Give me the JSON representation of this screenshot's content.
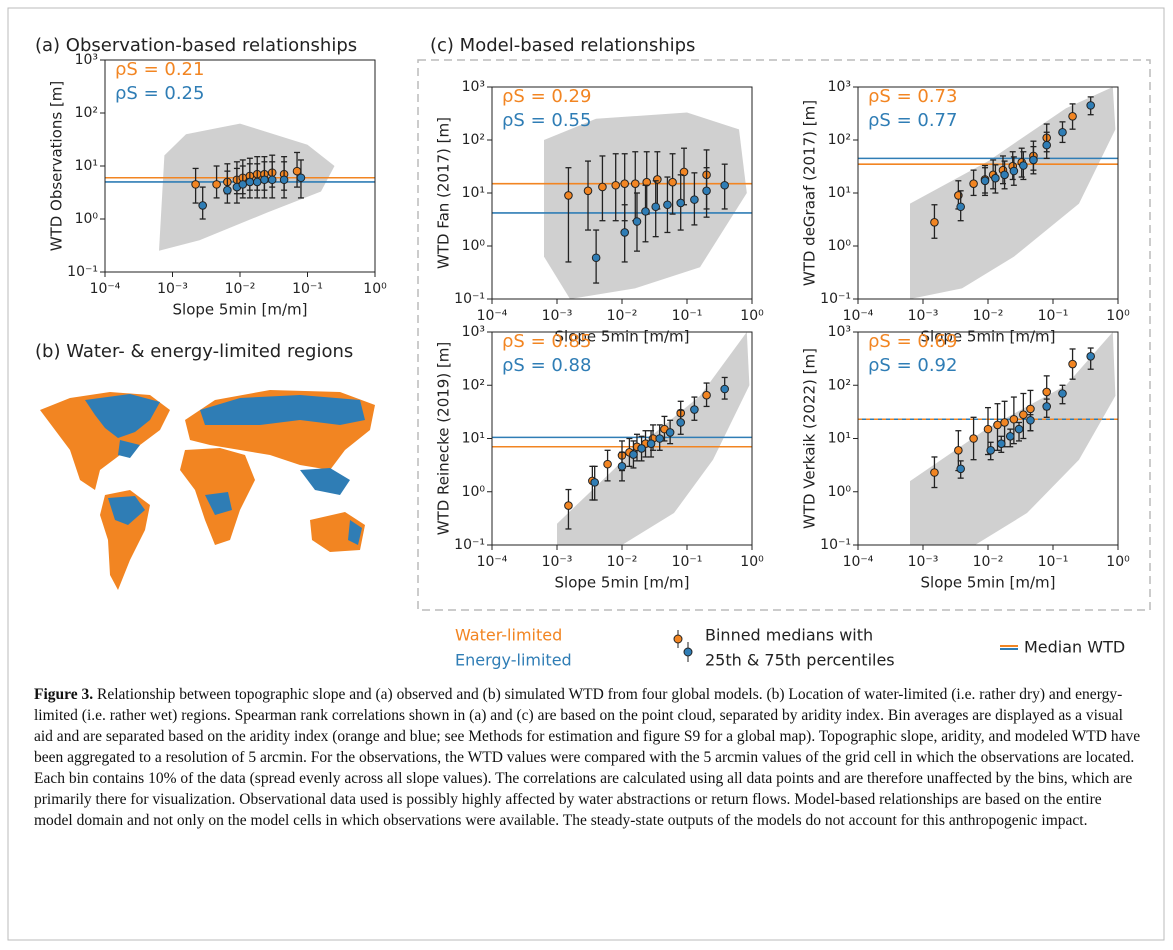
{
  "panel_c_title": "(c) Model-based relationships",
  "map": {
    "title": "(b) Water- & energy-limited regions"
  },
  "legend": {
    "water": "Water-limited",
    "energy": "Energy-limited",
    "markers_line1": "Binned medians with",
    "markers_line2": "25th & 75th percentiles",
    "line": "Median WTD"
  },
  "caption": {
    "label": "Figure 3.",
    "text": "Relationship between topographic slope and (a) observed and (b) simulated WTD from four global models. (b) Location of water-limited (i.e. rather dry) and energy-limited (i.e. rather wet) regions. Spearman rank correlations shown in (a) and (c) are based on the point cloud, separated by aridity index. Bin averages are displayed as a visual aid and are separated based on the aridity index (orange and blue; see Methods for estimation and figure S9 for a global map). Topographic slope, aridity, and modeled WTD have been aggregated to a resolution of 5 arcmin. For the observations, the WTD values were compared with the 5 arcmin values of the grid cell in which the observations are located. Each bin contains 10% of the data (spread evenly across all slope values). The correlations are calculated using all data points and are therefore unaffected by the bins, which are primarily there for visualization. Observational data used is possibly highly affected by water abstractions or return flows. Model-based relationships are based on the entire model domain and not only on the model cells in which observations were available. The steady-state outputs of the models do not account for this anthropogenic impact."
  },
  "chart_data": [
    {
      "type": "errorbar",
      "title": "(a) Observation-based relationships",
      "xlabel": "Slope 5min [m/m]",
      "ylabel": "WTD Observations [m]",
      "xscale": "log",
      "yscale": "log",
      "median_linestyle": "solid",
      "xlim": [
        0.0001,
        1
      ],
      "ylim": [
        0.1,
        1000
      ],
      "xticks": [
        {
          "value": 0.0001,
          "label": "10⁻⁴"
        },
        {
          "value": 0.001,
          "label": "10⁻³"
        },
        {
          "value": 0.01,
          "label": "10⁻²"
        },
        {
          "value": 0.1,
          "label": "10⁻¹"
        },
        {
          "value": 1,
          "label": "10⁰"
        }
      ],
      "yticks": [
        {
          "value": 0.1,
          "label": "10⁻¹"
        },
        {
          "value": 1,
          "label": "10⁰"
        },
        {
          "value": 10,
          "label": "10¹"
        },
        {
          "value": 100,
          "label": "10²"
        },
        {
          "value": 1000,
          "label": "10³"
        }
      ],
      "series": [
        {
          "name": "Water-limited",
          "color": "#f28522",
          "annotation": "ρS = 0.21",
          "median": 6,
          "x": [
            0.0022,
            0.0045,
            0.0065,
            0.009,
            0.011,
            0.014,
            0.018,
            0.023,
            0.03,
            0.045,
            0.07
          ],
          "values": [
            4.5,
            4.5,
            5,
            5.5,
            6,
            6.5,
            7,
            7,
            7.5,
            7,
            8
          ],
          "low": [
            2,
            2.5,
            3,
            3,
            3,
            3.5,
            3.5,
            3.5,
            4,
            3.5,
            4
          ],
          "high": [
            9,
            10,
            11,
            12,
            13,
            14,
            15,
            15,
            16,
            15,
            18
          ]
        },
        {
          "name": "Energy-limited",
          "color": "#2f7db5",
          "annotation": "ρS = 0.25",
          "median": 5,
          "x": [
            0.0028,
            0.0065,
            0.009,
            0.011,
            0.014,
            0.018,
            0.023,
            0.03,
            0.045,
            0.08
          ],
          "values": [
            1.8,
            3.5,
            4,
            4.5,
            5,
            5,
            5.5,
            5.5,
            5.5,
            6
          ],
          "low": [
            1,
            2,
            2,
            2.5,
            2.5,
            2.5,
            2.5,
            2.5,
            2.5,
            2.5
          ],
          "high": [
            4,
            8,
            9,
            10,
            11,
            11,
            12,
            12,
            12,
            13
          ]
        }
      ]
    },
    {
      "type": "errorbar",
      "xlabel": "Slope 5min [m/m]",
      "ylabel": "WTD Fan (2017) [m]",
      "xscale": "log",
      "yscale": "log",
      "median_linestyle": "solid",
      "xlim": [
        0.0001,
        1
      ],
      "ylim": [
        0.1,
        1000
      ],
      "xticks": [
        {
          "value": 0.0001,
          "label": "10⁻⁴"
        },
        {
          "value": 0.001,
          "label": "10⁻³"
        },
        {
          "value": 0.01,
          "label": "10⁻²"
        },
        {
          "value": 0.1,
          "label": "10⁻¹"
        },
        {
          "value": 1,
          "label": "10⁰"
        }
      ],
      "yticks": [
        {
          "value": 0.1,
          "label": "10⁻¹"
        },
        {
          "value": 1,
          "label": "10⁰"
        },
        {
          "value": 10,
          "label": "10¹"
        },
        {
          "value": 100,
          "label": "10²"
        },
        {
          "value": 1000,
          "label": "10³"
        }
      ],
      "series": [
        {
          "name": "Water-limited",
          "color": "#f28522",
          "annotation": "ρS = 0.29",
          "median": 15,
          "x": [
            0.0015,
            0.003,
            0.005,
            0.008,
            0.011,
            0.016,
            0.024,
            0.035,
            0.06,
            0.09,
            0.2
          ],
          "values": [
            9,
            11,
            13,
            14,
            15,
            15,
            16,
            18,
            16,
            25,
            22
          ],
          "low": [
            0.5,
            2,
            3,
            3,
            3,
            3,
            4,
            5,
            4,
            6,
            5
          ],
          "high": [
            30,
            40,
            50,
            55,
            55,
            60,
            60,
            60,
            55,
            70,
            65
          ]
        },
        {
          "name": "Energy-limited",
          "color": "#2f7db5",
          "annotation": "ρS = 0.55",
          "median": 4.2,
          "x": [
            0.004,
            0.011,
            0.017,
            0.023,
            0.033,
            0.05,
            0.08,
            0.13,
            0.2,
            0.38
          ],
          "values": [
            0.6,
            1.8,
            2.9,
            4.5,
            5.5,
            6,
            6.5,
            7.5,
            11,
            14
          ],
          "low": [
            0.2,
            0.5,
            0.8,
            1.2,
            1.5,
            1.8,
            2,
            2.5,
            3.5,
            5
          ],
          "high": [
            2,
            6,
            10,
            14,
            17,
            20,
            22,
            24,
            30,
            35
          ]
        }
      ]
    },
    {
      "type": "errorbar",
      "xlabel": "Slope 5min [m/m]",
      "ylabel": "WTD deGraaf (2017) [m]",
      "xscale": "log",
      "yscale": "log",
      "median_linestyle": "solid",
      "xlim": [
        0.0001,
        1
      ],
      "ylim": [
        0.1,
        1000
      ],
      "xticks": [
        {
          "value": 0.0001,
          "label": "10⁻⁴"
        },
        {
          "value": 0.001,
          "label": "10⁻³"
        },
        {
          "value": 0.01,
          "label": "10⁻²"
        },
        {
          "value": 0.1,
          "label": "10⁻¹"
        },
        {
          "value": 1,
          "label": "10⁰"
        }
      ],
      "yticks": [
        {
          "value": 0.1,
          "label": "10⁻¹"
        },
        {
          "value": 1,
          "label": "10⁰"
        },
        {
          "value": 10,
          "label": "10¹"
        },
        {
          "value": 100,
          "label": "10²"
        },
        {
          "value": 1000,
          "label": "10³"
        }
      ],
      "series": [
        {
          "name": "Water-limited",
          "color": "#f28522",
          "annotation": "ρS = 0.73",
          "median": 35,
          "x": [
            0.0015,
            0.0035,
            0.006,
            0.009,
            0.012,
            0.017,
            0.024,
            0.033,
            0.05,
            0.08,
            0.2
          ],
          "values": [
            2.8,
            9,
            15,
            18,
            22,
            27,
            32,
            38,
            50,
            110,
            280
          ],
          "low": [
            1.4,
            5,
            9,
            10,
            12,
            15,
            18,
            20,
            27,
            60,
            160
          ],
          "high": [
            6,
            17,
            27,
            33,
            42,
            50,
            60,
            70,
            95,
            200,
            480
          ]
        },
        {
          "name": "Energy-limited",
          "color": "#2f7db5",
          "annotation": "ρS = 0.77",
          "median": 45,
          "x": [
            0.0038,
            0.009,
            0.013,
            0.018,
            0.025,
            0.035,
            0.05,
            0.08,
            0.14,
            0.38
          ],
          "values": [
            5.5,
            17,
            19,
            22,
            26,
            33,
            42,
            80,
            140,
            450
          ],
          "low": [
            3,
            9,
            10,
            12,
            14,
            18,
            23,
            45,
            90,
            300
          ],
          "high": [
            11,
            30,
            34,
            40,
            48,
            60,
            75,
            140,
            220,
            650
          ]
        }
      ]
    },
    {
      "type": "errorbar",
      "xlabel": "Slope 5min [m/m]",
      "ylabel": "WTD Reinecke (2019) [m]",
      "xscale": "log",
      "yscale": "log",
      "median_linestyle": "solid",
      "xlim": [
        0.0001,
        1
      ],
      "ylim": [
        0.1,
        1000
      ],
      "xticks": [
        {
          "value": 0.0001,
          "label": "10⁻⁴"
        },
        {
          "value": 0.001,
          "label": "10⁻³"
        },
        {
          "value": 0.01,
          "label": "10⁻²"
        },
        {
          "value": 0.1,
          "label": "10⁻¹"
        },
        {
          "value": 1,
          "label": "10⁰"
        }
      ],
      "yticks": [
        {
          "value": 0.1,
          "label": "10⁻¹"
        },
        {
          "value": 1,
          "label": "10⁰"
        },
        {
          "value": 10,
          "label": "10¹"
        },
        {
          "value": 100,
          "label": "10²"
        },
        {
          "value": 1000,
          "label": "10³"
        }
      ],
      "series": [
        {
          "name": "Water-limited",
          "color": "#f28522",
          "annotation": "ρS = 0.85",
          "median": 7,
          "x": [
            0.0015,
            0.0035,
            0.006,
            0.01,
            0.013,
            0.017,
            0.023,
            0.03,
            0.045,
            0.08,
            0.2
          ],
          "values": [
            0.55,
            1.6,
            3.3,
            4.8,
            5.5,
            7,
            8,
            10,
            15,
            30,
            65
          ],
          "low": [
            0.2,
            0.7,
            1.6,
            2.5,
            3,
            3.8,
            4.5,
            6,
            9,
            18,
            40
          ],
          "high": [
            1.1,
            3,
            6,
            9,
            10,
            12,
            14,
            18,
            26,
            50,
            110
          ]
        },
        {
          "name": "Energy-limited",
          "color": "#2f7db5",
          "annotation": "ρS = 0.88",
          "median": 10.5,
          "x": [
            0.0038,
            0.01,
            0.015,
            0.02,
            0.028,
            0.038,
            0.055,
            0.08,
            0.13,
            0.38
          ],
          "values": [
            1.5,
            3,
            5,
            6.5,
            8,
            10,
            13,
            20,
            35,
            85
          ],
          "low": [
            0.7,
            1.6,
            2.8,
            3.8,
            4.5,
            6,
            8,
            12,
            22,
            55
          ],
          "high": [
            3,
            5.5,
            9,
            11,
            14,
            18,
            22,
            34,
            60,
            140
          ]
        }
      ]
    },
    {
      "type": "errorbar",
      "xlabel": "Slope 5min [m/m]",
      "ylabel": "WTD Verkaik (2022) [m]",
      "xscale": "log",
      "yscale": "log",
      "median_linestyle": "dashed",
      "xlim": [
        0.0001,
        1
      ],
      "ylim": [
        0.1,
        1000
      ],
      "xticks": [
        {
          "value": 0.0001,
          "label": "10⁻⁴"
        },
        {
          "value": 0.001,
          "label": "10⁻³"
        },
        {
          "value": 0.01,
          "label": "10⁻²"
        },
        {
          "value": 0.1,
          "label": "10⁻¹"
        },
        {
          "value": 1,
          "label": "10⁰"
        }
      ],
      "yticks": [
        {
          "value": 0.1,
          "label": "10⁻¹"
        },
        {
          "value": 1,
          "label": "10⁰"
        },
        {
          "value": 10,
          "label": "10¹"
        },
        {
          "value": 100,
          "label": "10²"
        },
        {
          "value": 1000,
          "label": "10³"
        }
      ],
      "series": [
        {
          "name": "Water-limited",
          "color": "#f28522",
          "annotation": "ρS = 0.69",
          "median": 23,
          "x": [
            0.0015,
            0.0035,
            0.006,
            0.01,
            0.014,
            0.018,
            0.025,
            0.035,
            0.045,
            0.08,
            0.2
          ],
          "values": [
            2.3,
            6,
            10,
            15,
            18,
            20,
            23,
            28,
            36,
            75,
            250
          ],
          "low": [
            1.2,
            2.5,
            4,
            5,
            6,
            7,
            8,
            10,
            14,
            35,
            130
          ],
          "high": [
            4.5,
            14,
            25,
            38,
            45,
            50,
            60,
            70,
            80,
            150,
            480
          ]
        },
        {
          "name": "Energy-limited",
          "color": "#2f7db5",
          "annotation": "ρS = 0.92",
          "median": 23,
          "x": [
            0.0038,
            0.011,
            0.016,
            0.022,
            0.03,
            0.045,
            0.08,
            0.14,
            0.38
          ],
          "values": [
            2.7,
            6,
            8,
            11,
            15,
            22,
            40,
            70,
            350
          ],
          "low": [
            1.8,
            4,
            5.5,
            7,
            9,
            14,
            25,
            45,
            200
          ],
          "high": [
            3.8,
            8.5,
            11,
            15,
            20,
            28,
            55,
            100,
            500
          ]
        }
      ]
    }
  ]
}
